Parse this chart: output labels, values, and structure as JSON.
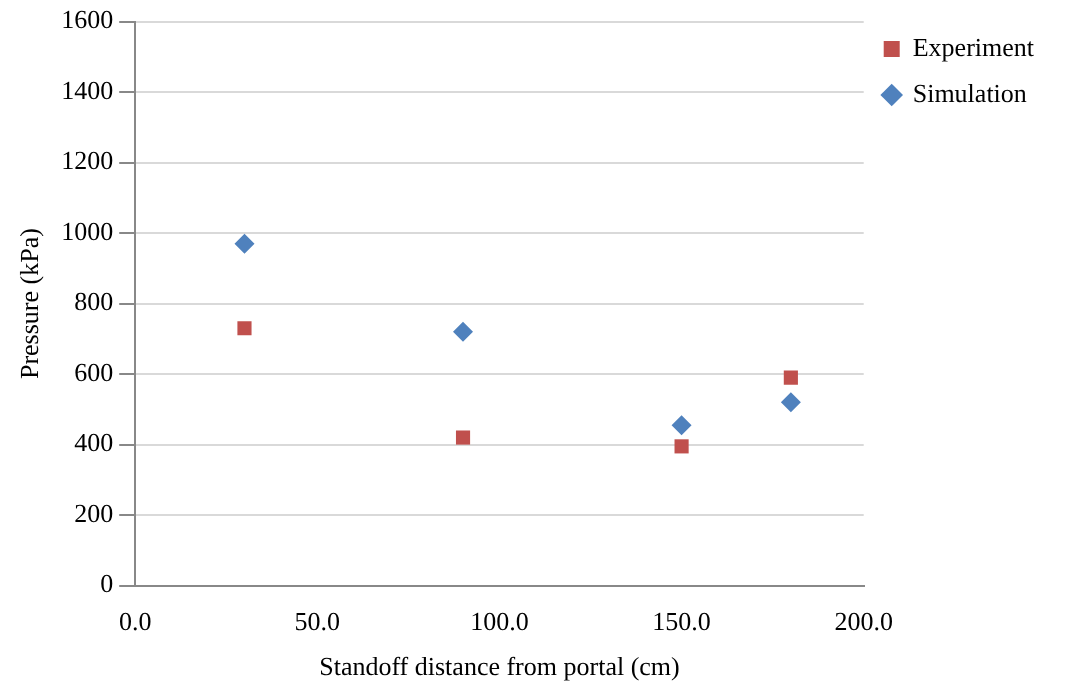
{
  "chart_data": {
    "type": "scatter",
    "xlabel": "Standoff distance from portal (cm)",
    "ylabel": "Pressure (kPa)",
    "series": [
      {
        "name": "Experiment",
        "color": "#c0504d",
        "marker": "square",
        "x": [
          30,
          90,
          150,
          180
        ],
        "values": [
          730,
          420,
          395,
          590
        ]
      },
      {
        "name": "Simulation",
        "color": "#4f81bd",
        "marker": "diamond",
        "x": [
          30,
          90,
          150,
          180
        ],
        "values": [
          970,
          720,
          455,
          520
        ]
      }
    ],
    "xlim": [
      0,
      200
    ],
    "xticks": [
      {
        "value": 0,
        "label": "0.0"
      },
      {
        "value": 50,
        "label": "50.0"
      },
      {
        "value": 100,
        "label": "100.0"
      },
      {
        "value": 150,
        "label": "150.0"
      },
      {
        "value": 200,
        "label": "200.0"
      }
    ],
    "ylim": [
      0,
      1600
    ],
    "yticks": [
      0,
      200,
      400,
      600,
      800,
      1000,
      1200,
      1400,
      1600
    ],
    "grid": "y",
    "legend": "top right"
  }
}
